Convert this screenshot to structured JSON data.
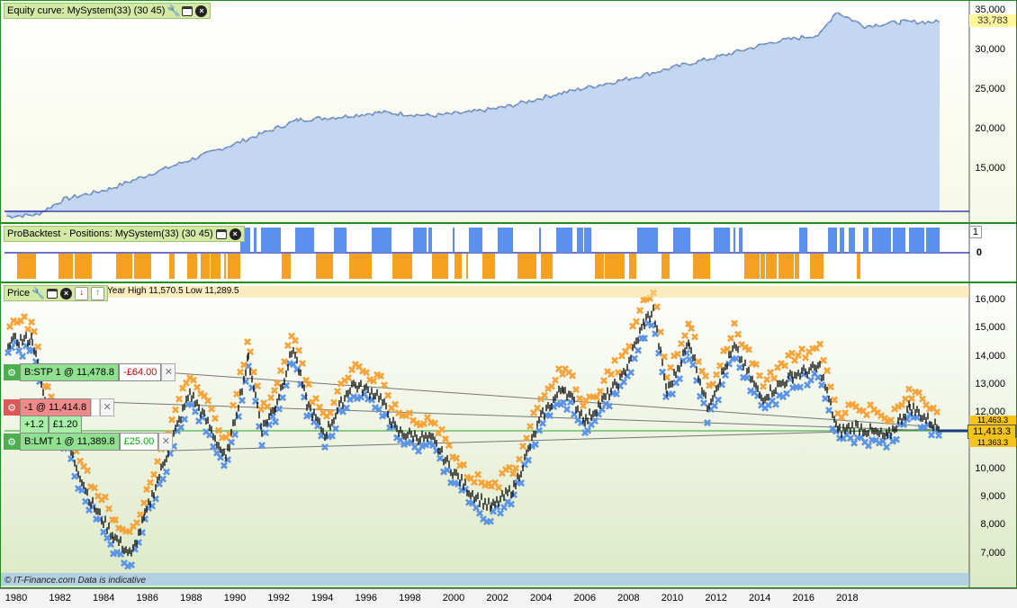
{
  "equity_panel": {
    "title": "Equity curve: MySystem(33) (30 45)",
    "y_labels": [
      "35,000",
      "30,000",
      "25,000",
      "20,000",
      "15,000"
    ],
    "current_value": "33,783",
    "colors": {
      "fill": "#c3d7f2",
      "line": "#5b8be0",
      "highlight": "#f5a623",
      "value_box": "#fff799"
    }
  },
  "positions_panel": {
    "title": "ProBacktest - Positions: MySystem(33) (30 45)",
    "y_labels": [
      "1",
      "0"
    ],
    "colors": {
      "long": "#5b8ff0",
      "short": "#f5a020"
    }
  },
  "price_panel": {
    "title": "Price",
    "info_text": "Year High 11,570.5 Low 11,289.5",
    "y_labels": [
      "16,000",
      "15,000",
      "14,000",
      "13,000",
      "12,000",
      "11,000",
      "10,000",
      "9,000",
      "8,000",
      "7,000"
    ],
    "last_price": "11,413.3",
    "extra_price_labels": [
      "11,463.3",
      "11,363.3"
    ],
    "watermark": "© IT-Finance.com  Data is indicative",
    "orders": [
      {
        "label": "B:STP 1 @ 11,478.8",
        "pnl": "-£64.00",
        "kind": "stop"
      },
      {
        "label": "-1 @ 11,414.8",
        "pnl_points": "+1.2",
        "pnl": "£1.20",
        "kind": "position"
      },
      {
        "label": "B:LMT 1 @ 11,389.8",
        "pnl": "£25.00",
        "kind": "limit"
      }
    ],
    "colors": {
      "orange": "#f7a33b",
      "blue": "#5b94e6",
      "black": "#111111",
      "price_box": "#f5c41a"
    }
  },
  "time_axis": {
    "years": [
      "1980",
      "1982",
      "1984",
      "1986",
      "1988",
      "1990",
      "1992",
      "1994",
      "1996",
      "1998",
      "2000",
      "2002",
      "2004",
      "2006",
      "2008",
      "2010",
      "2012",
      "2014",
      "2016",
      "2018"
    ]
  }
}
